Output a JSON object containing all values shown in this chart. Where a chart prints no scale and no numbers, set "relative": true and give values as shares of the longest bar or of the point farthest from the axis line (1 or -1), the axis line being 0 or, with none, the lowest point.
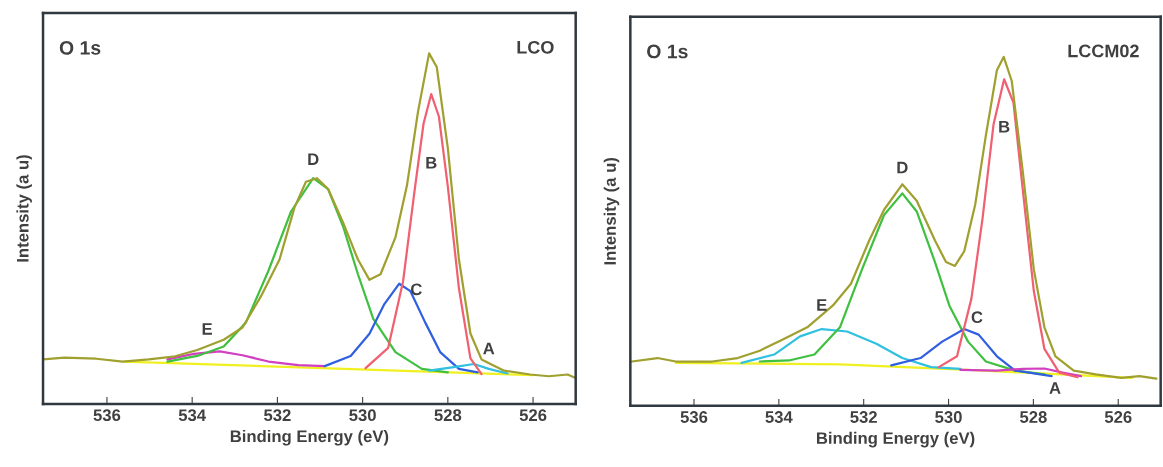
{
  "chart_data": [
    {
      "type": "line",
      "title": "O 1s",
      "subtitle": "LCO",
      "xlabel": "Binding Energy (eV)",
      "ylabel": "Intensity (a u)",
      "relative": true,
      "xlim": [
        537.5,
        525
      ],
      "xticks": [
        536,
        534,
        532,
        530,
        528,
        526
      ],
      "grid": false,
      "legend": false,
      "tick_labels": "x",
      "series": [
        {
          "color": "#f0f020",
          "x": [
            535.6,
            526.0
          ],
          "values": [
            0.121,
            0.082
          ]
        },
        {
          "name": "E",
          "color": "#d040c0",
          "x": [
            534.58,
            533.96,
            533.35,
            532.82,
            532.21,
            531.51,
            530.89
          ],
          "values": [
            0.127,
            0.143,
            0.15,
            0.139,
            0.121,
            0.111,
            0.108
          ]
        },
        {
          "name": "D",
          "color": "#40c040",
          "x": [
            534.58,
            533.88,
            533.26,
            532.74,
            532.21,
            531.68,
            531.16,
            530.81,
            530.46,
            530.11,
            529.75,
            529.23,
            528.61,
            528.0
          ],
          "values": [
            0.121,
            0.137,
            0.164,
            0.232,
            0.38,
            0.549,
            0.644,
            0.613,
            0.507,
            0.37,
            0.243,
            0.148,
            0.1,
            0.09
          ]
        },
        {
          "name": "C",
          "color": "#3060e0",
          "x": [
            530.89,
            530.28,
            529.84,
            529.49,
            529.14,
            528.88,
            528.53,
            528.18,
            527.74,
            527.3
          ],
          "values": [
            0.108,
            0.137,
            0.2,
            0.285,
            0.343,
            0.322,
            0.232,
            0.148,
            0.1,
            0.09
          ]
        },
        {
          "name": "A",
          "color": "#30c0e0",
          "x": [
            528.44,
            527.82,
            527.39,
            527.04,
            526.6
          ],
          "values": [
            0.095,
            0.106,
            0.114,
            0.1,
            0.087
          ]
        },
        {
          "name": "B",
          "color": "#f06070",
          "x": [
            529.93,
            529.4,
            529.05,
            528.79,
            528.57,
            528.39,
            528.21,
            528.0,
            527.74,
            527.47,
            527.21
          ],
          "values": [
            0.102,
            0.16,
            0.35,
            0.6,
            0.8,
            0.884,
            0.82,
            0.62,
            0.33,
            0.13,
            0.085
          ]
        },
        {
          "color": "#a0a030",
          "x": [
            537.5,
            537.0,
            536.25,
            535.63,
            535.02,
            534.4,
            533.88,
            533.26,
            532.82,
            532.39,
            531.95,
            531.6,
            531.33,
            531.07,
            530.81,
            530.46,
            530.11,
            529.84,
            529.58,
            529.23,
            528.96,
            528.7,
            528.44,
            528.26,
            528.0,
            527.74,
            527.47,
            527.21,
            526.68,
            526.07,
            525.63,
            525.19,
            525.0
          ],
          "values": [
            0.127,
            0.132,
            0.129,
            0.121,
            0.127,
            0.136,
            0.154,
            0.183,
            0.218,
            0.306,
            0.412,
            0.56,
            0.634,
            0.644,
            0.613,
            0.518,
            0.412,
            0.354,
            0.37,
            0.475,
            0.623,
            0.834,
            1.0,
            0.961,
            0.729,
            0.412,
            0.201,
            0.127,
            0.095,
            0.084,
            0.079,
            0.084,
            0.074
          ]
        }
      ]
    },
    {
      "type": "line",
      "title": "O 1s",
      "subtitle": "LCCM02",
      "xlabel": "Binding Energy (eV)",
      "ylabel": "Intensity (a u)",
      "relative": true,
      "xlim": [
        537.5,
        525
      ],
      "xticks": [
        536,
        534,
        532,
        530,
        528,
        526
      ],
      "grid": false,
      "legend": false,
      "tick_labels": "x",
      "series": [
        {
          "color": "#f0f020",
          "x": [
            536.43,
            532.56,
            529.54,
            525.67
          ],
          "values": [
            0.123,
            0.119,
            0.103,
            0.08
          ]
        },
        {
          "name": "E",
          "color": "#30c0e0",
          "x": [
            534.88,
            534.11,
            533.5,
            532.99,
            532.39,
            531.7,
            531.09,
            530.41,
            529.72
          ],
          "values": [
            0.123,
            0.147,
            0.199,
            0.22,
            0.213,
            0.178,
            0.137,
            0.111,
            0.106
          ]
        },
        {
          "name": "D",
          "color": "#40c040",
          "x": [
            534.45,
            533.76,
            533.16,
            532.56,
            532.04,
            531.52,
            531.09,
            530.75,
            530.32,
            529.98,
            529.54,
            529.12,
            528.43,
            527.74
          ],
          "values": [
            0.127,
            0.13,
            0.147,
            0.225,
            0.391,
            0.547,
            0.609,
            0.557,
            0.412,
            0.287,
            0.184,
            0.127,
            0.101,
            0.09
          ]
        },
        {
          "name": "C",
          "color": "#3060e0",
          "x": [
            531.35,
            530.66,
            530.15,
            529.63,
            529.29,
            528.86,
            528.43,
            527.57
          ],
          "values": [
            0.116,
            0.137,
            0.184,
            0.22,
            0.204,
            0.142,
            0.101,
            0.085
          ]
        },
        {
          "name": "A",
          "color": "#d040c0",
          "x": [
            529.72,
            528.86,
            528.25,
            527.74,
            527.31,
            526.88
          ],
          "values": [
            0.103,
            0.101,
            0.106,
            0.107,
            0.095,
            0.085
          ]
        },
        {
          "name": "B",
          "color": "#f06070",
          "x": [
            530.23,
            529.8,
            529.46,
            529.2,
            528.94,
            528.69,
            528.47,
            528.25,
            527.99,
            527.74,
            527.39,
            526.96
          ],
          "values": [
            0.111,
            0.142,
            0.308,
            0.536,
            0.806,
            0.936,
            0.869,
            0.619,
            0.329,
            0.163,
            0.095,
            0.082
          ]
        },
        {
          "color": "#a0a030",
          "x": [
            537.46,
            536.86,
            536.43,
            535.57,
            534.97,
            534.45,
            533.93,
            533.33,
            532.73,
            532.3,
            531.87,
            531.52,
            531.09,
            530.75,
            530.32,
            530.06,
            529.85,
            529.63,
            529.37,
            529.12,
            528.86,
            528.7,
            528.51,
            528.25,
            527.99,
            527.74,
            527.48,
            527.05,
            526.53,
            525.93,
            525.5,
            525.1
          ],
          "values": [
            0.127,
            0.137,
            0.127,
            0.127,
            0.137,
            0.158,
            0.189,
            0.225,
            0.287,
            0.35,
            0.474,
            0.562,
            0.635,
            0.588,
            0.474,
            0.412,
            0.401,
            0.443,
            0.578,
            0.775,
            0.962,
            1.0,
            0.931,
            0.671,
            0.391,
            0.225,
            0.142,
            0.101,
            0.09,
            0.08,
            0.085,
            0.078
          ]
        }
      ]
    }
  ]
}
